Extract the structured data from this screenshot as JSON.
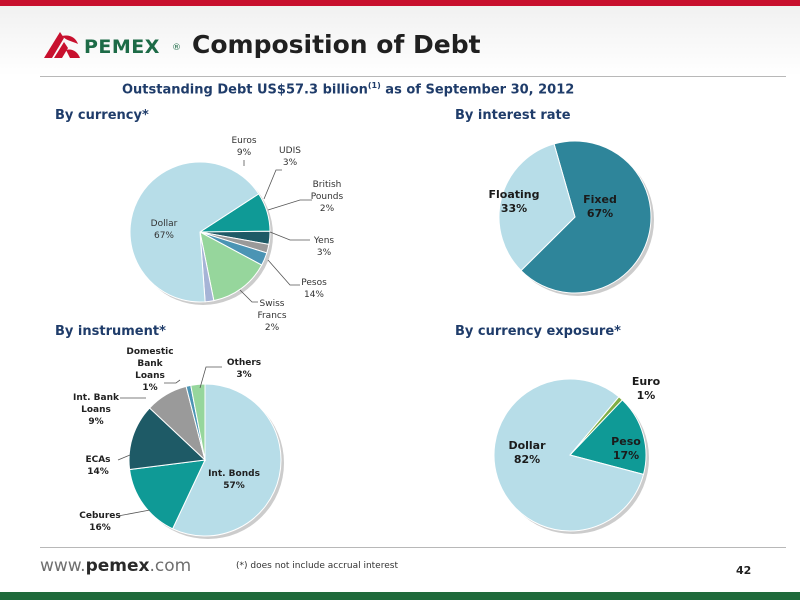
{
  "header": {
    "brand": "PEMEX",
    "brand_mark": "®",
    "title": "Composition of Debt",
    "subtitle_main": "Outstanding Debt US$57.3 billion",
    "subtitle_sup": "(1)",
    "subtitle_tail": " as of September 30, 2012"
  },
  "footer": {
    "website_prefix": "www.",
    "website_brand": "pemex",
    "website_suffix": ".com",
    "footnote": "(*) does not include accrual interest",
    "page_number": "42"
  },
  "colors": {
    "top_bar": "#c8102e",
    "bottom_bar": "#1f6a3b",
    "light_blue": "#b7dde8",
    "teal": "#0f9a96",
    "dark_teal": "#1e5a66",
    "gray": "#9a9a9a",
    "steel": "#4b94b4",
    "light_green": "#96d69c",
    "lavender": "#a6b4d6",
    "fixed_blue": "#2e859a",
    "olive": "#7fae46"
  },
  "chart_data": [
    {
      "type": "pie",
      "title": "By currency*",
      "slices": [
        {
          "name": "Euros",
          "value": 9,
          "label": "9%",
          "color": "#0f9a96"
        },
        {
          "name": "UDIS",
          "value": 3,
          "label": "3%",
          "color": "#1e5a66"
        },
        {
          "name": "British Pounds",
          "value": 2,
          "label": "2%",
          "color": "#9a9a9a"
        },
        {
          "name": "Yens",
          "value": 3,
          "label": "3%",
          "color": "#4b94b4"
        },
        {
          "name": "Pesos",
          "value": 14,
          "label": "14%",
          "color": "#96d69c"
        },
        {
          "name": "Swiss Francs",
          "value": 2,
          "label": "2%",
          "color": "#a6b4d6"
        },
        {
          "name": "Dollar",
          "value": 67,
          "label": "67%",
          "color": "#b7dde8"
        }
      ]
    },
    {
      "type": "pie",
      "title": "By interest rate",
      "slices": [
        {
          "name": "Fixed",
          "value": 67,
          "label": "67%",
          "color": "#2e859a"
        },
        {
          "name": "Floating",
          "value": 33,
          "label": "33%",
          "color": "#b7dde8"
        }
      ]
    },
    {
      "type": "pie",
      "title": "By instrument*",
      "slices": [
        {
          "name": "Int. Bonds",
          "value": 57,
          "label": "57%",
          "color": "#b7dde8"
        },
        {
          "name": "Cebures",
          "value": 16,
          "label": "16%",
          "color": "#0f9a96"
        },
        {
          "name": "ECAs",
          "value": 14,
          "label": "14%",
          "color": "#1e5a66"
        },
        {
          "name": "Int. Bank Loans",
          "value": 9,
          "label": "9%",
          "color": "#9a9a9a"
        },
        {
          "name": "Domestic Bank Loans",
          "value": 1,
          "label": "1%",
          "color": "#4b94b4"
        },
        {
          "name": "Others",
          "value": 3,
          "label": "3%",
          "color": "#96d69c"
        }
      ]
    },
    {
      "type": "pie",
      "title": "By currency exposure*",
      "slices": [
        {
          "name": "Euro",
          "value": 1,
          "label": "1%",
          "color": "#7fae46"
        },
        {
          "name": "Peso",
          "value": 17,
          "label": "17%",
          "color": "#0f9a96"
        },
        {
          "name": "Dollar",
          "value": 82,
          "label": "82%",
          "color": "#b7dde8"
        }
      ]
    }
  ]
}
